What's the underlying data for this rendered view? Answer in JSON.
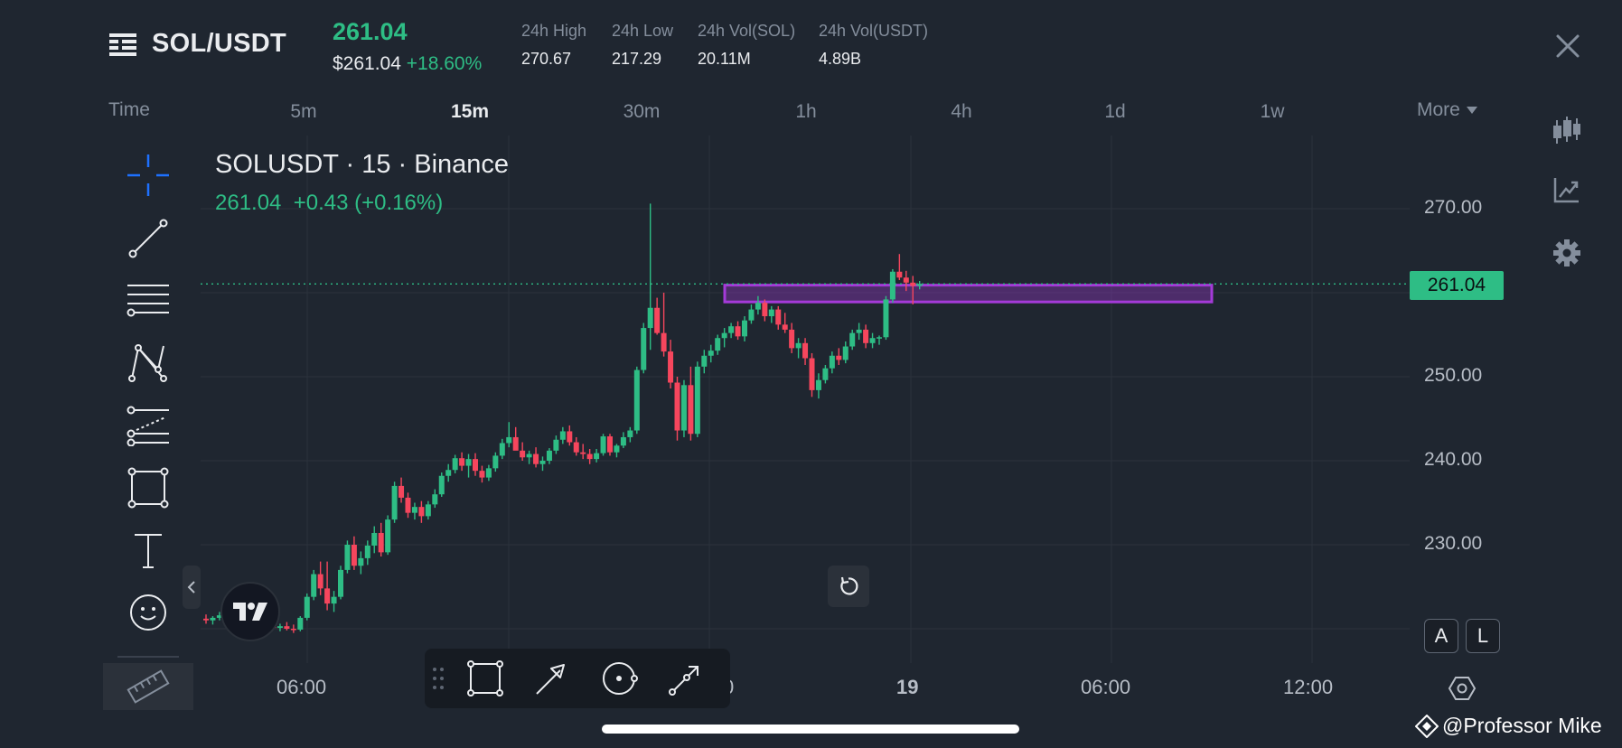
{
  "header": {
    "pair": "SOL/USDT",
    "last_price": "261.04",
    "usd_price": "$261.04",
    "change_pct": "+18.60%",
    "stats": [
      {
        "label": "24h High",
        "value": "270.67"
      },
      {
        "label": "24h Low",
        "value": "217.29"
      },
      {
        "label": "24h Vol(SOL)",
        "value": "20.11M"
      },
      {
        "label": "24h Vol(USDT)",
        "value": "4.89B"
      }
    ]
  },
  "timeframes": {
    "time_label": "Time",
    "items": [
      "5m",
      "15m",
      "30m",
      "1h",
      "4h",
      "1d",
      "1w"
    ],
    "active": "15m",
    "more_label": "More"
  },
  "chart": {
    "symbol_line": "SOLUSDT · 15 · Binance",
    "price_line": "261.04  +0.43 (+0.16%)",
    "current_price_tag": "261.04",
    "y_ticks": [
      "270.00",
      "250.00",
      "240.00",
      "230.00"
    ],
    "x_ticks": [
      "06:00",
      "0",
      "19",
      "06:00",
      "12:00"
    ],
    "scale_buttons": [
      "A",
      "L"
    ]
  },
  "colors": {
    "up": "#2ebd85",
    "down": "#f6465d",
    "accent": "#1e71ff",
    "zone": "#a43ad8"
  },
  "watermark": "@Professor Mike",
  "chart_data": {
    "type": "candlestick",
    "title": "SOLUSDT · 15 · Binance",
    "ylim": [
      222,
      273
    ],
    "y_scale": "linear",
    "grid": true,
    "current_price": 261.04,
    "zone": {
      "low": 258.9,
      "high": 260.9
    },
    "candles": [
      [
        221.2,
        221.7,
        220.6,
        221.0
      ],
      [
        221.0,
        221.5,
        220.5,
        221.3
      ],
      [
        221.3,
        222.0,
        221.0,
        221.6
      ],
      [
        221.6,
        222.1,
        221.2,
        221.8
      ],
      [
        221.8,
        222.4,
        221.4,
        222.1
      ],
      [
        222.1,
        222.5,
        221.5,
        221.7
      ],
      [
        221.7,
        222.1,
        221.0,
        221.4
      ],
      [
        221.4,
        221.8,
        220.8,
        221.1
      ],
      [
        221.1,
        221.5,
        220.3,
        220.6
      ],
      [
        220.6,
        221.0,
        220.0,
        220.4
      ],
      [
        220.4,
        220.8,
        219.9,
        220.1
      ],
      [
        220.1,
        220.6,
        219.7,
        220.3
      ],
      [
        220.3,
        220.8,
        219.8,
        220.0
      ],
      [
        220.0,
        220.5,
        219.5,
        219.9
      ],
      [
        219.9,
        221.5,
        219.7,
        221.3
      ],
      [
        221.3,
        224.2,
        221.0,
        223.8
      ],
      [
        223.8,
        227.0,
        223.4,
        226.5
      ],
      [
        226.5,
        228.0,
        224.0,
        224.8
      ],
      [
        224.8,
        228.0,
        222.2,
        223.0
      ],
      [
        223.0,
        224.5,
        222.0,
        223.8
      ],
      [
        223.8,
        227.5,
        223.5,
        227.0
      ],
      [
        227.0,
        230.5,
        226.6,
        230.0
      ],
      [
        230.0,
        231.0,
        227.0,
        227.5
      ],
      [
        227.5,
        229.2,
        226.5,
        228.4
      ],
      [
        228.4,
        230.5,
        227.6,
        229.9
      ],
      [
        229.9,
        232.2,
        229.0,
        231.4
      ],
      [
        231.4,
        232.6,
        228.6,
        229.1
      ],
      [
        229.1,
        233.5,
        228.8,
        233.0
      ],
      [
        233.0,
        237.5,
        232.6,
        237.0
      ],
      [
        237.0,
        238.0,
        235.0,
        235.6
      ],
      [
        235.6,
        236.2,
        233.2,
        233.8
      ],
      [
        233.8,
        235.0,
        233.0,
        234.5
      ],
      [
        234.5,
        235.2,
        232.6,
        233.4
      ],
      [
        233.4,
        235.2,
        233.0,
        234.8
      ],
      [
        234.8,
        236.6,
        234.4,
        236.0
      ],
      [
        236.0,
        238.6,
        235.7,
        238.2
      ],
      [
        238.2,
        239.6,
        237.5,
        238.9
      ],
      [
        238.9,
        240.7,
        238.5,
        240.3
      ],
      [
        240.3,
        241.0,
        238.8,
        239.4
      ],
      [
        239.4,
        240.8,
        238.0,
        240.2
      ],
      [
        240.2,
        240.9,
        238.2,
        238.8
      ],
      [
        238.8,
        239.4,
        237.4,
        238.0
      ],
      [
        238.0,
        239.5,
        237.6,
        239.1
      ],
      [
        239.1,
        241.0,
        238.7,
        240.6
      ],
      [
        240.6,
        242.6,
        240.2,
        242.1
      ],
      [
        242.1,
        244.6,
        241.6,
        242.8
      ],
      [
        242.8,
        244.0,
        241.6,
        241.2
      ],
      [
        241.2,
        242.2,
        240.0,
        240.4
      ],
      [
        240.4,
        241.2,
        239.6,
        240.8
      ],
      [
        240.8,
        241.6,
        239.2,
        239.6
      ],
      [
        239.6,
        240.5,
        238.8,
        240.0
      ],
      [
        240.0,
        241.5,
        239.6,
        241.2
      ],
      [
        241.2,
        243.0,
        240.8,
        242.5
      ],
      [
        242.5,
        244.0,
        242.0,
        243.5
      ],
      [
        243.5,
        244.2,
        241.8,
        242.2
      ],
      [
        242.2,
        242.8,
        240.6,
        241.0
      ],
      [
        241.0,
        242.0,
        240.2,
        240.8
      ],
      [
        240.8,
        241.4,
        239.6,
        240.2
      ],
      [
        240.2,
        241.4,
        239.8,
        240.9
      ],
      [
        240.9,
        243.2,
        240.6,
        242.9
      ],
      [
        242.9,
        243.2,
        240.6,
        241.0
      ],
      [
        241.0,
        242.0,
        240.4,
        241.8
      ],
      [
        241.8,
        243.4,
        241.5,
        242.8
      ],
      [
        242.8,
        244.0,
        242.2,
        243.6
      ],
      [
        243.6,
        251.2,
        243.2,
        250.8
      ],
      [
        250.8,
        256.4,
        250.4,
        255.8
      ],
      [
        255.8,
        270.6,
        253.2,
        258.2
      ],
      [
        258.2,
        259.4,
        255.0,
        255.2
      ],
      [
        255.2,
        260.0,
        252.4,
        253.0
      ],
      [
        253.0,
        254.4,
        248.6,
        249.3
      ],
      [
        249.3,
        250.0,
        242.4,
        243.6
      ],
      [
        243.6,
        249.6,
        242.8,
        249.0
      ],
      [
        249.0,
        251.2,
        242.4,
        243.2
      ],
      [
        243.2,
        251.8,
        242.8,
        251.2
      ],
      [
        251.2,
        253.2,
        250.4,
        252.5
      ],
      [
        252.5,
        253.8,
        251.7,
        253.1
      ],
      [
        253.1,
        255.0,
        252.6,
        254.6
      ],
      [
        254.6,
        255.8,
        253.5,
        255.2
      ],
      [
        255.2,
        256.4,
        254.6,
        256.0
      ],
      [
        256.0,
        256.6,
        254.4,
        254.8
      ],
      [
        254.8,
        257.2,
        254.2,
        256.7
      ],
      [
        256.7,
        258.6,
        256.3,
        258.0
      ],
      [
        258.0,
        259.6,
        257.4,
        258.8
      ],
      [
        258.8,
        259.2,
        256.6,
        257.2
      ],
      [
        257.2,
        258.4,
        256.4,
        258.0
      ],
      [
        258.0,
        258.4,
        255.6,
        256.2
      ],
      [
        256.2,
        257.6,
        255.2,
        255.6
      ],
      [
        255.6,
        256.4,
        252.8,
        253.4
      ],
      [
        253.4,
        254.6,
        252.2,
        254.0
      ],
      [
        254.0,
        254.6,
        251.4,
        252.2
      ],
      [
        252.2,
        252.8,
        247.6,
        248.4
      ],
      [
        248.4,
        250.4,
        247.4,
        249.6
      ],
      [
        249.6,
        251.4,
        249.2,
        251.0
      ],
      [
        251.0,
        253.0,
        250.4,
        252.5
      ],
      [
        252.5,
        253.4,
        251.4,
        252.0
      ],
      [
        252.0,
        254.2,
        251.6,
        253.6
      ],
      [
        253.6,
        255.6,
        253.2,
        255.2
      ],
      [
        255.2,
        256.4,
        254.4,
        255.6
      ],
      [
        255.6,
        256.2,
        253.4,
        254.0
      ],
      [
        254.0,
        255.2,
        253.4,
        254.6
      ],
      [
        254.6,
        254.9,
        253.8,
        254.7
      ],
      [
        254.7,
        259.6,
        254.4,
        259.2
      ],
      [
        259.2,
        262.8,
        258.8,
        262.5
      ],
      [
        262.5,
        264.6,
        261.5,
        261.8
      ],
      [
        261.8,
        262.6,
        260.2,
        261.2
      ],
      [
        261.2,
        262.0,
        258.6,
        260.8
      ],
      [
        260.8,
        261.4,
        260.4,
        261.04
      ]
    ]
  }
}
